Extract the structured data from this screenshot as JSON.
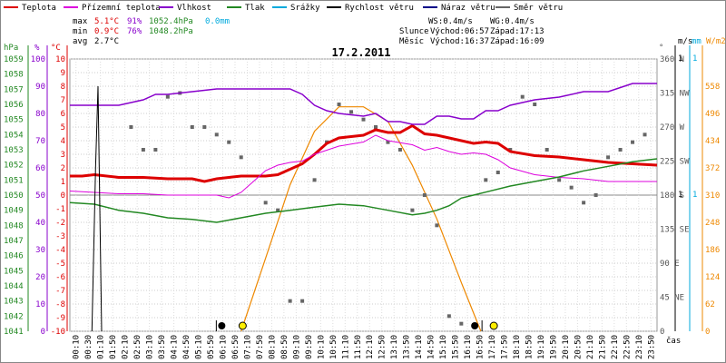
{
  "date_title": "17.2.2011",
  "legend": [
    {
      "label": "Teplota",
      "color": "#dd0000"
    },
    {
      "label": "Přízemní teplota",
      "color": "#dd00dd"
    },
    {
      "label": "Vlhkost",
      "color": "#8800cc"
    },
    {
      "label": "Tlak",
      "color": "#228822"
    },
    {
      "label": "Srážky",
      "color": "#00aadd"
    },
    {
      "label": "Rychlost větru",
      "color": "#000000"
    },
    {
      "label": "Náraz větru",
      "color": "#000088"
    },
    {
      "label": "Směr větru",
      "color": "#666666"
    }
  ],
  "stats": {
    "max_label": "max",
    "max_temp": "5.1°C",
    "max_hum": "91%",
    "max_press": "1052.4hPa",
    "max_rain": "0.0mm",
    "min_label": "min",
    "min_temp": "0.9°C",
    "min_hum": "76%",
    "min_press": "1048.2hPa",
    "avg_label": "avg",
    "avg_temp": "2.7°C"
  },
  "wind_info": {
    "ws": "WS:0.4m/s",
    "wg": "WG:0.4m/s"
  },
  "sun_info": {
    "label": "Slunce",
    "rise": "Východ:06:57",
    "set": "Západ:17:13"
  },
  "moon_info": {
    "label": "Měsíc",
    "rise": "Východ:16:37",
    "set": "Západ:16:09"
  },
  "axis_units": {
    "hpa": "hPa",
    "pct": "%",
    "degc": "°C",
    "deg": "°",
    "ms": "m/s",
    "mm": "mm",
    "wm2": "W/m2",
    "time": "čas"
  },
  "hpa_ticks": [
    "1059",
    "1058",
    "1057",
    "1056",
    "1055",
    "1054",
    "1053",
    "1052",
    "1051",
    "1050",
    "1049",
    "1048",
    "1047",
    "1046",
    "1045",
    "1044",
    "1043",
    "1042",
    "1041"
  ],
  "pct_ticks": [
    "100",
    "90",
    "80",
    "70",
    "60",
    "50",
    "40",
    "30",
    "20",
    "10",
    "0"
  ],
  "degc_ticks": [
    "10",
    "9",
    "8",
    "7",
    "6",
    "5",
    "4",
    "3",
    "2",
    "1",
    "0",
    "-1",
    "-2",
    "-3",
    "-4",
    "-5",
    "-6",
    "-7",
    "-8",
    "-9",
    "-10"
  ],
  "dir_ticks": [
    "360 N",
    "315 NW",
    "270 W",
    "225 SW",
    "180 S",
    "135 SE",
    "90 E",
    "45 NE",
    "0"
  ],
  "ms_ticks": [
    "1",
    "1"
  ],
  "mm_ticks": [
    "1",
    "1"
  ],
  "solar_ticks": [
    "558",
    "496",
    "434",
    "372",
    "310",
    "248",
    "186",
    "124",
    "62",
    "0"
  ],
  "time_ticks": [
    "00:10",
    "00:30",
    "01:10",
    "01:50",
    "02:10",
    "02:50",
    "03:10",
    "03:50",
    "04:10",
    "04:50",
    "05:10",
    "05:50",
    "06:10",
    "06:50",
    "07:10",
    "07:50",
    "08:10",
    "08:50",
    "09:10",
    "09:50",
    "10:10",
    "10:50",
    "11:10",
    "11:50",
    "12:10",
    "12:50",
    "13:10",
    "13:50",
    "14:10",
    "14:50",
    "15:10",
    "15:50",
    "16:10",
    "16:50",
    "17:10",
    "17:50",
    "18:10",
    "18:50",
    "19:10",
    "19:50",
    "20:10",
    "20:50",
    "21:10",
    "21:50",
    "22:10",
    "22:50",
    "23:10",
    "23:50"
  ],
  "chart_data": {
    "type": "line",
    "x_unit": "hours of day",
    "xlim": [
      0,
      24
    ],
    "series": [
      {
        "name": "Teplota",
        "color": "#dd0000",
        "axis": "degC",
        "x": [
          0,
          0.5,
          1,
          2,
          3,
          4,
          5,
          5.5,
          6,
          6.5,
          7,
          8,
          8.5,
          9,
          9.5,
          10,
          10.5,
          11,
          11.5,
          12,
          12.5,
          13,
          13.5,
          14,
          14.5,
          15,
          15.5,
          16,
          16.5,
          17,
          17.5,
          18,
          19,
          20,
          21,
          22,
          23,
          24
        ],
        "y": [
          1.4,
          1.4,
          1.5,
          1.3,
          1.3,
          1.2,
          1.2,
          1.0,
          1.2,
          1.3,
          1.4,
          1.4,
          1.5,
          1.9,
          2.3,
          3.0,
          3.8,
          4.2,
          4.3,
          4.4,
          4.8,
          4.6,
          4.6,
          5.1,
          4.5,
          4.4,
          4.2,
          4.0,
          3.8,
          3.9,
          3.8,
          3.2,
          2.9,
          2.8,
          2.6,
          2.4,
          2.3,
          2.2
        ]
      },
      {
        "name": "Přízemní teplota",
        "color": "#dd00dd",
        "axis": "degC",
        "x": [
          0,
          1,
          2,
          3,
          4,
          5,
          6,
          6.5,
          7,
          7.5,
          8,
          8.5,
          9,
          9.5,
          10,
          11,
          12,
          12.5,
          13,
          14,
          14.5,
          15,
          15.5,
          16,
          16.5,
          17,
          17.5,
          18,
          19,
          20,
          21,
          22,
          23,
          24
        ],
        "y": [
          0.3,
          0.2,
          0.1,
          0.1,
          0.0,
          0.0,
          0.0,
          -0.2,
          0.2,
          1.0,
          1.8,
          2.2,
          2.4,
          2.5,
          3.0,
          3.6,
          3.9,
          4.4,
          4.0,
          3.7,
          3.3,
          3.5,
          3.2,
          3.0,
          3.1,
          3.0,
          2.6,
          2.0,
          1.5,
          1.3,
          1.2,
          1.0,
          1.0,
          1.0
        ]
      },
      {
        "name": "Vlhkost",
        "color": "#8800cc",
        "axis": "percent",
        "x": [
          0,
          2,
          3,
          3.5,
          4,
          5,
          6,
          7,
          8,
          9,
          9.5,
          10,
          10.5,
          11,
          12,
          12.5,
          13,
          13.5,
          14,
          14.5,
          15,
          15.5,
          16,
          16.5,
          17,
          17.5,
          18,
          18.5,
          19,
          20,
          21,
          22,
          23,
          24
        ],
        "y": [
          83,
          83,
          85,
          87,
          87,
          88,
          89,
          89,
          89,
          89,
          87,
          83,
          81,
          80,
          79,
          80,
          77,
          77,
          76,
          76,
          79,
          79,
          78,
          78,
          81,
          81,
          83,
          84,
          85,
          86,
          88,
          88,
          91,
          91
        ]
      },
      {
        "name": "Tlak",
        "color": "#228822",
        "axis": "hPa",
        "x": [
          0,
          1,
          2,
          3,
          4,
          5,
          6,
          7,
          8,
          9,
          10,
          11,
          12,
          13,
          14,
          14.5,
          15,
          15.5,
          16,
          16.5,
          17,
          18,
          19,
          20,
          21,
          22,
          23,
          24
        ],
        "y": [
          1049.5,
          1049.4,
          1049.0,
          1048.8,
          1048.5,
          1048.4,
          1048.2,
          1048.5,
          1048.8,
          1049.0,
          1049.2,
          1049.4,
          1049.3,
          1049.0,
          1048.7,
          1048.8,
          1049.0,
          1049.3,
          1049.8,
          1050.0,
          1050.2,
          1050.6,
          1050.9,
          1051.2,
          1051.6,
          1051.9,
          1052.2,
          1052.4
        ]
      },
      {
        "name": "Rychlost větru",
        "color": "#000000",
        "axis": "ms",
        "x": [
          0.9,
          1.05,
          1.15,
          1.3
        ],
        "y": [
          0.0,
          0.6,
          0.9,
          0.0
        ]
      }
    ],
    "solar_radiation": {
      "name": "Solar",
      "color": "#ee8800",
      "unit": "W/m2",
      "x": [
        7.0,
        8.0,
        9.0,
        10.0,
        11.0,
        12.0,
        13.0,
        14.0,
        15.0,
        16.0,
        16.8
      ],
      "y": [
        0,
        150,
        300,
        410,
        460,
        460,
        430,
        340,
        230,
        100,
        0
      ]
    },
    "wind_direction": {
      "name": "Směr větru",
      "unit": "deg",
      "x": [
        2.5,
        3.0,
        3.5,
        4.0,
        4.5,
        5.0,
        5.5,
        6.0,
        6.5,
        7.0,
        8.0,
        8.5,
        9.0,
        9.5,
        10.0,
        10.5,
        11.0,
        11.5,
        12.0,
        12.5,
        13.0,
        13.5,
        14.0,
        14.5,
        15.0,
        15.5,
        16.0,
        17.0,
        17.5,
        18.0,
        18.5,
        19.0,
        19.5,
        20.0,
        20.5,
        21.0,
        21.5,
        22.0,
        22.5,
        23.0,
        23.5
      ],
      "y": [
        270,
        240,
        240,
        310,
        315,
        270,
        270,
        260,
        250,
        230,
        170,
        160,
        40,
        40,
        200,
        250,
        300,
        290,
        280,
        270,
        250,
        240,
        160,
        180,
        140,
        20,
        10,
        200,
        210,
        240,
        310,
        300,
        240,
        200,
        190,
        170,
        180,
        230,
        240,
        250,
        260
      ]
    },
    "markers": {
      "sunrise": "06:57",
      "sunset": "17:13"
    }
  }
}
